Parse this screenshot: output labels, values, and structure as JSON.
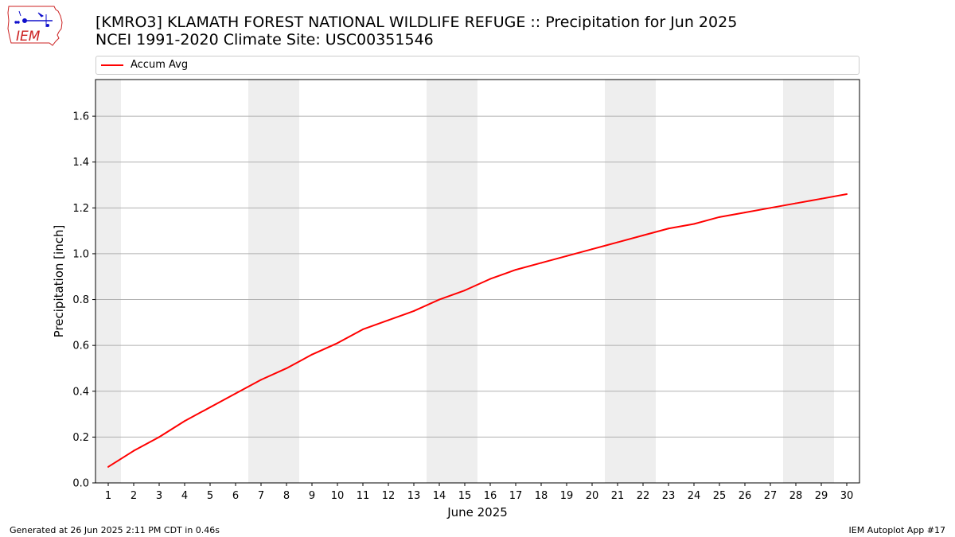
{
  "header": {
    "title_line1": "[KMRO3] KLAMATH FOREST NATIONAL WILDLIFE REFUGE :: Precipitation for Jun 2025",
    "title_line2": "NCEI 1991-2020 Climate Site: USC00351546",
    "logo_text": "IEM"
  },
  "footer": {
    "generated": "Generated at 26 Jun 2025 2:11 PM CDT in 0.46s",
    "app": "IEM Autoplot App #17"
  },
  "colors": {
    "series": "#ff0000",
    "weekend_band": "#eeeeee",
    "grid": "#b0b0b0",
    "logo": "#cc2222"
  },
  "chart_data": {
    "type": "line",
    "xlabel": "June 2025",
    "ylabel": "Precipitation [inch]",
    "xlim": [
      0.5,
      30.5
    ],
    "ylim": [
      0,
      1.76
    ],
    "x": [
      1,
      2,
      3,
      4,
      5,
      6,
      7,
      8,
      9,
      10,
      11,
      12,
      13,
      14,
      15,
      16,
      17,
      18,
      19,
      20,
      21,
      22,
      23,
      24,
      25,
      26,
      27,
      28,
      29,
      30
    ],
    "series": [
      {
        "name": "Accum Avg",
        "color": "#ff0000",
        "values": [
          0.07,
          0.14,
          0.2,
          0.27,
          0.33,
          0.39,
          0.45,
          0.5,
          0.56,
          0.61,
          0.67,
          0.71,
          0.75,
          0.8,
          0.84,
          0.89,
          0.93,
          0.96,
          0.99,
          1.02,
          1.05,
          1.08,
          1.11,
          1.13,
          1.16,
          1.18,
          1.2,
          1.22,
          1.24,
          1.26
        ]
      }
    ],
    "xticks": [
      "1",
      "2",
      "3",
      "4",
      "5",
      "6",
      "7",
      "8",
      "9",
      "10",
      "11",
      "12",
      "13",
      "14",
      "15",
      "16",
      "17",
      "18",
      "19",
      "20",
      "21",
      "22",
      "23",
      "24",
      "25",
      "26",
      "27",
      "28",
      "29",
      "30"
    ],
    "yticks": [
      0.0,
      0.2,
      0.4,
      0.6,
      0.8,
      1.0,
      1.2,
      1.4,
      1.6
    ],
    "ytick_labels": [
      "0.0",
      "0.2",
      "0.4",
      "0.6",
      "0.8",
      "1.0",
      "1.2",
      "1.4",
      "1.6"
    ],
    "weekend_bands": [
      [
        0.5,
        1.5
      ],
      [
        6.5,
        8.5
      ],
      [
        13.5,
        15.5
      ],
      [
        20.5,
        22.5
      ],
      [
        27.5,
        29.5
      ]
    ],
    "grid": "horizontal",
    "legend_placement": "top"
  }
}
